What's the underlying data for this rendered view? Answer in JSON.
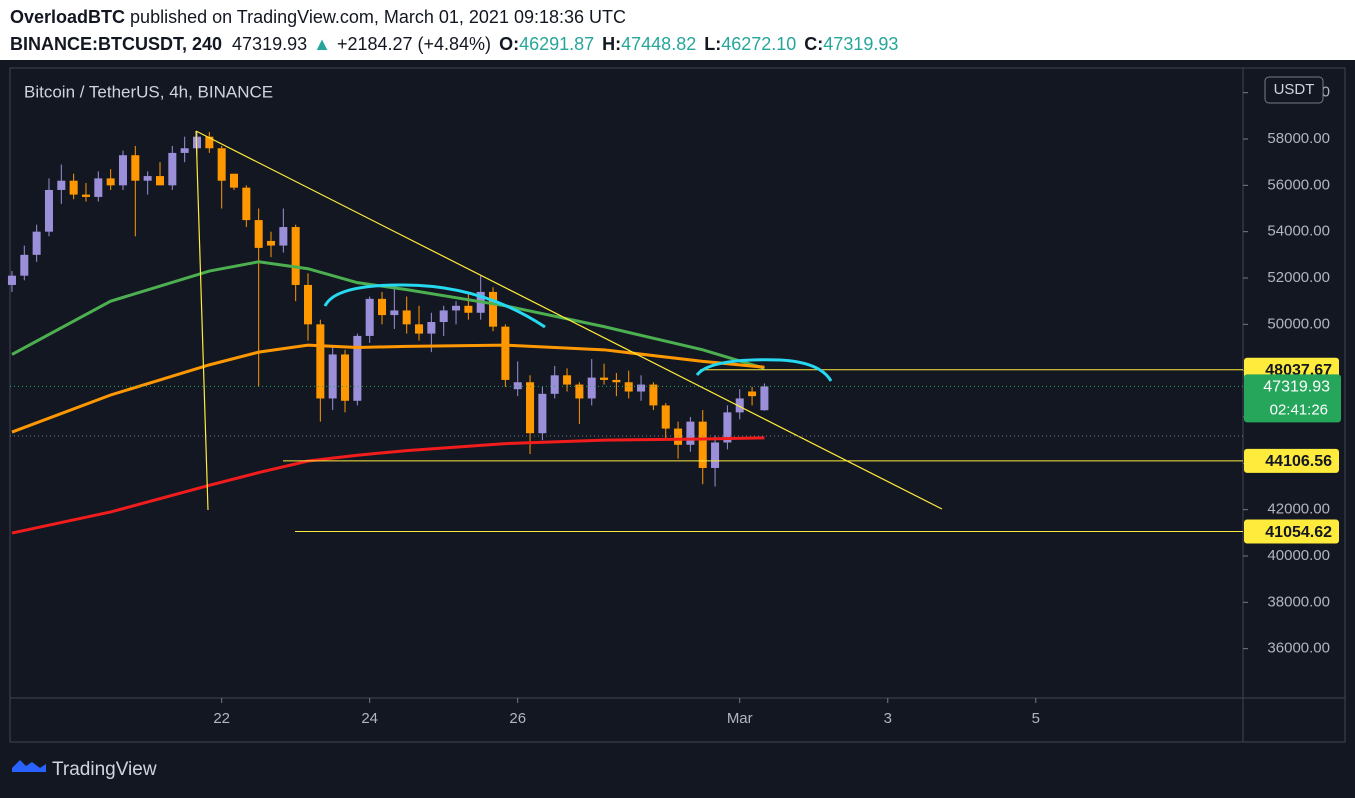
{
  "header": {
    "author": "OverloadBTC",
    "published": "published on TradingView.com, March 01, 2021 09:18:36 UTC",
    "symbol": "BINANCE:BTCUSDT, 240",
    "last": "47319.93",
    "arrow": "▲",
    "change": "+2184.27 (+4.84%)",
    "open_label": "O:",
    "open": "46291.87",
    "high_label": "H:",
    "high": "47448.82",
    "low_label": "L:",
    "low": "46272.10",
    "close_label": "C:",
    "close": "47319.93"
  },
  "footer": {
    "brand": "TradingView"
  },
  "chart_data": {
    "type": "candlestick",
    "title": "Bitcoin / TetherUS, 4h, BINANCE",
    "currency": "USDT",
    "up_color": "#9b8fd9",
    "down_color": "#ff9800",
    "open": [
      51700,
      52100,
      53000,
      54000,
      55800,
      56200,
      55600,
      55500,
      56300,
      56000,
      57300,
      56200,
      56400,
      56000,
      57400,
      57600,
      58100,
      57600,
      56500,
      55900,
      54500,
      53600,
      53400,
      54200,
      51700,
      50000,
      46800,
      48700,
      46700,
      49500,
      51100,
      50400,
      50600,
      50000,
      49600,
      50100,
      50600,
      50800,
      50500,
      51400,
      49900,
      47200,
      47500,
      45300,
      47000,
      47800,
      47400,
      46800,
      47700,
      47600,
      47500,
      47100,
      47400,
      46500,
      45500,
      44800,
      45800,
      43800,
      44900,
      46200,
      47100,
      46291.87
    ],
    "high": [
      52300,
      53400,
      54300,
      56300,
      56900,
      56500,
      56100,
      56600,
      56700,
      57500,
      57700,
      56600,
      57000,
      57700,
      58100,
      58300,
      58300,
      57700,
      56500,
      56000,
      55000,
      54000,
      55000,
      54300,
      52200,
      50200,
      49000,
      48900,
      49600,
      51200,
      51400,
      51600,
      51200,
      50800,
      50500,
      50800,
      51000,
      51400,
      52100,
      51600,
      50000,
      48400,
      47800,
      47300,
      48200,
      48100,
      47500,
      48500,
      48300,
      47900,
      48000,
      47800,
      47500,
      46600,
      45800,
      46000,
      46300,
      45200,
      46500,
      47200,
      47300,
      47448.82
    ],
    "low": [
      51400,
      51900,
      52700,
      53800,
      55200,
      55400,
      55300,
      55300,
      55800,
      55800,
      53800,
      55600,
      56000,
      55800,
      57000,
      57200,
      57400,
      55000,
      55800,
      54200,
      47300,
      52900,
      53100,
      51000,
      49300,
      45800,
      46300,
      46200,
      46500,
      49200,
      50000,
      49800,
      49600,
      49300,
      48800,
      49500,
      50000,
      50200,
      50200,
      49700,
      47300,
      46900,
      44400,
      45000,
      46800,
      47100,
      45700,
      46500,
      47400,
      46900,
      46800,
      46700,
      46300,
      45000,
      44200,
      44500,
      43100,
      43000,
      44600,
      45900,
      46500,
      46272.1
    ],
    "close": [
      52100,
      53000,
      54000,
      55800,
      56200,
      55600,
      55500,
      56300,
      56000,
      57300,
      56200,
      56400,
      56000,
      57400,
      57600,
      58100,
      57600,
      56200,
      55900,
      54500,
      53300,
      53400,
      54200,
      51700,
      50000,
      46800,
      48700,
      46700,
      49500,
      51100,
      50400,
      50600,
      50000,
      49600,
      50100,
      50600,
      50800,
      50500,
      51400,
      49900,
      47600,
      47500,
      45300,
      47000,
      47800,
      47400,
      46800,
      47700,
      47600,
      47500,
      47100,
      47400,
      46500,
      45500,
      44800,
      45800,
      43800,
      44900,
      46200,
      46800,
      46900,
      47319.93
    ],
    "xlim": [
      -0.16,
      99.8
    ],
    "xticks": [
      {
        "value": 17,
        "label": "22"
      },
      {
        "value": 29,
        "label": "24"
      },
      {
        "value": 41,
        "label": "26"
      },
      {
        "value": 59,
        "label": "Mar"
      },
      {
        "value": 71,
        "label": "3"
      },
      {
        "value": 83,
        "label": "5"
      }
    ],
    "ylim": [
      33870,
      61065
    ],
    "yticks": [
      {
        "value": 36000,
        "label": "36000.00"
      },
      {
        "value": 38000,
        "label": "38000.00"
      },
      {
        "value": 40000,
        "label": "40000.00"
      },
      {
        "value": 42000,
        "label": "42000.00"
      },
      {
        "value": 44000,
        "label": "44000.00"
      },
      {
        "value": 46000,
        "label": "46000.00"
      },
      {
        "value": 48000,
        "label": "48000.00"
      },
      {
        "value": 50000,
        "label": "50000.00"
      },
      {
        "value": 52000,
        "label": "52000.00"
      },
      {
        "value": 54000,
        "label": "54000.00"
      },
      {
        "value": 56000,
        "label": "56000.00"
      },
      {
        "value": 58000,
        "label": "58000.00"
      },
      {
        "value": 60000,
        "label": "60000.00"
      }
    ],
    "overlays": [
      {
        "color": "#4caf50",
        "x": [
          0,
          8,
          16,
          20,
          24,
          28,
          32,
          40,
          48,
          56,
          61
        ],
        "values": [
          48700,
          51000,
          52300,
          52700,
          52400,
          51800,
          51500,
          50800,
          49900,
          48900,
          48100
        ]
      },
      {
        "color": "#ff9800",
        "x": [
          0,
          8,
          16,
          20,
          24,
          28,
          32,
          40,
          48,
          56,
          61
        ],
        "values": [
          45350,
          46950,
          48250,
          48800,
          49100,
          49000,
          49050,
          49100,
          48900,
          48400,
          48150
        ]
      },
      {
        "color": "#f21c1c",
        "x": [
          0,
          8,
          16,
          20,
          24,
          28,
          32,
          40,
          48,
          56,
          61
        ],
        "values": [
          40990,
          41900,
          43050,
          43600,
          44100,
          44350,
          44550,
          44850,
          45000,
          45050,
          45100
        ]
      }
    ],
    "levels": [
      48037.67,
      44106.56,
      41054.62
    ],
    "level_color": "#ffeb3b",
    "last_price": 47319.93,
    "last_price_label": "47319.93",
    "countdown": "02:41:26",
    "last_price_color": "#26a65b"
  }
}
